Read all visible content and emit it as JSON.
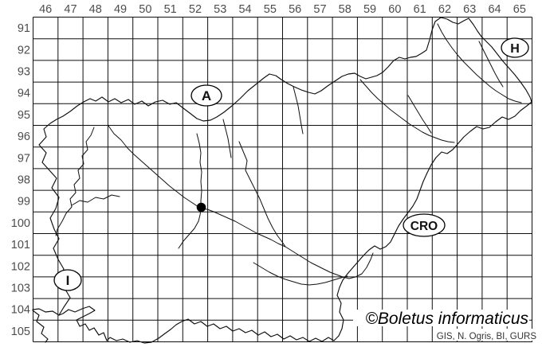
{
  "axes": {
    "column_labels": [
      "46",
      "47",
      "48",
      "49",
      "50",
      "51",
      "52",
      "53",
      "54",
      "55",
      "56",
      "57",
      "58",
      "59",
      "60",
      "61",
      "62",
      "63",
      "64",
      "65"
    ],
    "row_labels": [
      "91",
      "92",
      "93",
      "94",
      "95",
      "96",
      "97",
      "98",
      "99",
      "100",
      "101",
      "102",
      "103",
      "104",
      "105"
    ]
  },
  "country_labels": {
    "austria": "A",
    "hungary": "H",
    "croatia": "CRO",
    "italy": "I"
  },
  "occurrence": {
    "grid_column": "52",
    "grid_row": "99"
  },
  "footer": {
    "attribution": "©Boletus informaticus",
    "credits": "GIS, N. Ogris, BI, GURS"
  },
  "colors": {
    "background": "#ffffff",
    "grid_line": "#0f0f0f",
    "axis_label": "#4d4d4d",
    "map_outline": "#000000",
    "occurrence_dot": "#000000"
  }
}
